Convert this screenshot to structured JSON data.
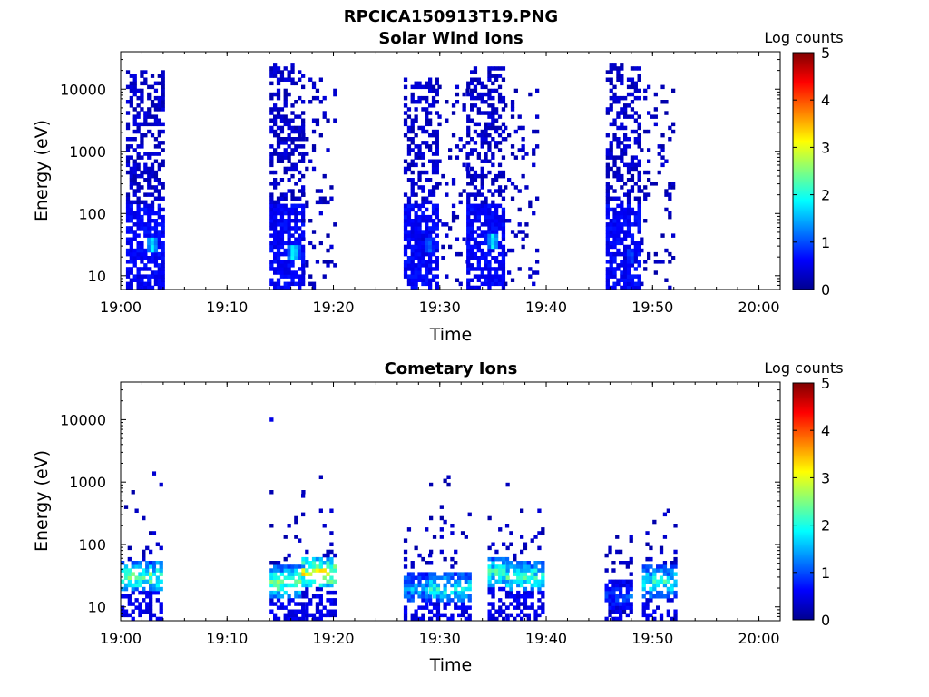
{
  "figure": {
    "title": "RPCICA150913T19.PNG"
  },
  "chart_data": [
    {
      "type": "heatmap",
      "title": "Solar Wind Ions",
      "xlabel": "Time",
      "ylabel": "Energy (eV)",
      "xlim": [
        "19:00",
        "20:02"
      ],
      "ylim": [
        6,
        40000
      ],
      "yscale": "log",
      "x_ticks": [
        "19:00",
        "19:10",
        "19:20",
        "19:30",
        "19:40",
        "19:50",
        "20:00"
      ],
      "y_ticks": [
        "10",
        "100",
        "1000",
        "10000"
      ],
      "colorbar": {
        "label": "Log counts",
        "range": [
          0,
          5
        ],
        "ticks": [
          "0",
          "1",
          "2",
          "3",
          "4",
          "5"
        ],
        "colormap": "jet"
      },
      "bursts": [
        {
          "start": "19:00.5",
          "end": "19:03.9",
          "emax": 20000,
          "low_peak_ev": 30,
          "peak_log_counts": 1.8
        },
        {
          "start": "19:14.0",
          "end": "19:17.0",
          "emax": 25000,
          "low_peak_ev": 25,
          "peak_log_counts": 2.0
        },
        {
          "start": "19:17.0",
          "end": "19:20.0",
          "emax": 15000,
          "sparse": true
        },
        {
          "start": "19:26.6",
          "end": "19:29.8",
          "emax": 15000,
          "low_peak_ev": 30,
          "peak_log_counts": 1.2
        },
        {
          "start": "19:29.8",
          "end": "19:32.5",
          "emax": 12000,
          "sparse": true
        },
        {
          "start": "19:32.5",
          "end": "19:36.0",
          "emax": 22000,
          "low_peak_ev": 35,
          "peak_log_counts": 1.9
        },
        {
          "start": "19:36.0",
          "end": "19:39.0",
          "emax": 12000,
          "sparse": true
        },
        {
          "start": "19:45.6",
          "end": "19:48.8",
          "emax": 25000,
          "low_peak_ev": 20,
          "peak_log_counts": 1.0
        },
        {
          "start": "19:48.8",
          "end": "19:52.0",
          "emax": 12000,
          "sparse": true
        }
      ]
    },
    {
      "type": "heatmap",
      "title": "Cometary Ions",
      "xlabel": "Time",
      "ylabel": "Energy (eV)",
      "xlim": [
        "19:00",
        "20:02"
      ],
      "ylim": [
        6,
        40000
      ],
      "yscale": "log",
      "x_ticks": [
        "19:00",
        "19:10",
        "19:20",
        "19:30",
        "19:40",
        "19:50",
        "20:00"
      ],
      "y_ticks": [
        "10",
        "100",
        "1000",
        "10000"
      ],
      "colorbar": {
        "label": "Log counts",
        "range": [
          0,
          5
        ],
        "ticks": [
          "0",
          "1",
          "2",
          "3",
          "4",
          "5"
        ],
        "colormap": "jet"
      },
      "bursts": [
        {
          "start": "19:00.0",
          "end": "19:03.9",
          "emax": 1500,
          "core_ev": 30,
          "peak_log_counts": 2.8
        },
        {
          "start": "19:14.0",
          "end": "19:17.0",
          "emax": 800,
          "core_ev": 25,
          "peak_log_counts": 3.0
        },
        {
          "start": "19:17.0",
          "end": "19:20.0",
          "emax": 1200,
          "core_ev": 35,
          "peak_log_counts": 3.7
        },
        {
          "start": "19:26.6",
          "end": "19:29.0",
          "emax": 300,
          "core_ev": 20,
          "peak_log_counts": 1.8
        },
        {
          "start": "19:29.0",
          "end": "19:32.8",
          "emax": 1200,
          "core_ev": 20,
          "peak_log_counts": 2.4
        },
        {
          "start": "19:34.5",
          "end": "19:36.2",
          "emax": 900,
          "core_ev": 35,
          "peak_log_counts": 2.8
        },
        {
          "start": "19:36.2",
          "end": "19:39.5",
          "emax": 1000,
          "core_ev": 30,
          "peak_log_counts": 2.6
        },
        {
          "start": "19:45.5",
          "end": "19:48.0",
          "emax": 200,
          "core_ev": 15,
          "peak_log_counts": 1.2
        },
        {
          "start": "19:49.0",
          "end": "19:52.0",
          "emax": 1000,
          "core_ev": 25,
          "peak_log_counts": 2.5
        }
      ],
      "isolated_points": [
        {
          "t": "19:14.0",
          "energy_ev": 10000,
          "log_counts": 0.5
        }
      ]
    }
  ]
}
